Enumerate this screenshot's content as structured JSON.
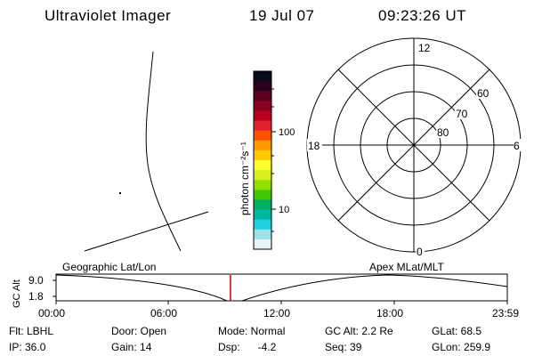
{
  "header": {
    "instrument": "Ultraviolet Imager",
    "date": "19 Jul 07",
    "time": "09:23:26 UT"
  },
  "colorbar": {
    "label": "photon cm⁻²s⁻¹",
    "ticks": [
      "100",
      "10"
    ],
    "colors": [
      "#0a0a1e",
      "#2a0020",
      "#5a0020",
      "#8a0020",
      "#b8001e",
      "#e0202a",
      "#ff5000",
      "#ff9a00",
      "#ffc800",
      "#ffff30",
      "#d8f020",
      "#90e000",
      "#40c800",
      "#00b060",
      "#00b8a0",
      "#20d0e0",
      "#a0e0e8",
      "#e8f4f4"
    ]
  },
  "map": {
    "left_label": "Geographic Lat/Lon",
    "right_label": "Apex  MLat/MLT"
  },
  "polar": {
    "mlt_labels": {
      "top": "12",
      "left": "18",
      "right": "6",
      "bottom": "0"
    },
    "lat_labels": [
      "60",
      "70",
      "80"
    ]
  },
  "altitude_plot": {
    "ylabel": "GC Alt",
    "ymax": "9.0",
    "ymin": "1.8",
    "xticks": [
      "00:00",
      "06:00",
      "12:00",
      "18:00",
      "23:59"
    ],
    "marker_color": "#cc0000"
  },
  "status": {
    "row1": [
      {
        "text": "Flt:  LBHL"
      },
      {
        "text": "Door:  Open"
      },
      {
        "text": "Mode:  Normal"
      },
      {
        "text": "GC Alt:  2.2 Re"
      },
      {
        "text": "GLat:   68.5"
      }
    ],
    "row2": [
      {
        "text": "IP:  36.0"
      },
      {
        "text": "Gain:  14"
      },
      {
        "text": "Dsp:      -4.2"
      },
      {
        "text": "Seq:  39"
      },
      {
        "text": "GLon:  259.9"
      }
    ]
  }
}
